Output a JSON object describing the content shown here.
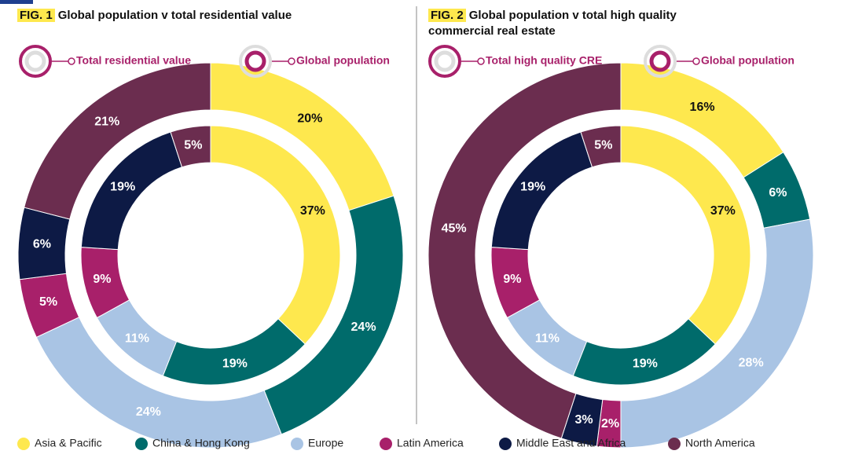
{
  "legend": {
    "categories": [
      "Asia & Pacific",
      "China & Hong Kong",
      "Europe",
      "Latin America",
      "Middle East and Africa",
      "North America"
    ],
    "colors": [
      "#fee84e",
      "#006b6b",
      "#a9c4e4",
      "#a8206a",
      "#0d1a45",
      "#6b2d4f"
    ]
  },
  "chart_data": [
    {
      "type": "donut",
      "label": "FIG. 1",
      "title": "Global population v total residential value",
      "series": [
        {
          "name": "Total residential value",
          "values": [
            20,
            24,
            24,
            5,
            6,
            21
          ],
          "value_labels": [
            "20%",
            "24%",
            "24%",
            "5%",
            "6%",
            "21%"
          ]
        },
        {
          "name": "Global population",
          "values": [
            37,
            19,
            11,
            9,
            19,
            5
          ],
          "value_labels": [
            "37%",
            "19%",
            "11%",
            "9%",
            "19%",
            "5%"
          ]
        }
      ]
    },
    {
      "type": "donut",
      "label": "FIG. 2",
      "title": "Global population v total high quality commercial real estate",
      "series": [
        {
          "name": "Total high quality CRE",
          "values": [
            16,
            6,
            28,
            2,
            3,
            45
          ],
          "value_labels": [
            "16%",
            "6%",
            "28%",
            "2%",
            "3%",
            "45%"
          ]
        },
        {
          "name": "Global population",
          "values": [
            37,
            19,
            11,
            9,
            19,
            5
          ],
          "value_labels": [
            "37%",
            "19%",
            "11%",
            "9%",
            "19%",
            "5%"
          ]
        }
      ]
    }
  ]
}
